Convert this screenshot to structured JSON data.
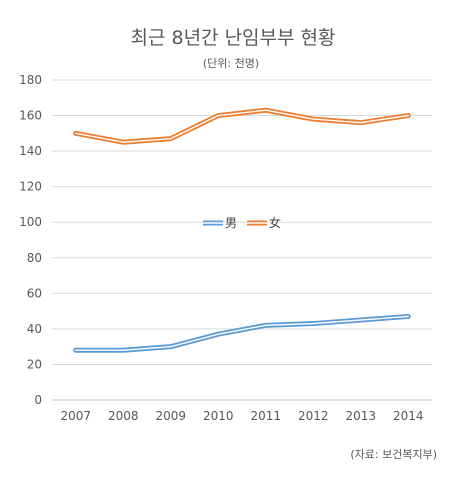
{
  "chart_data": {
    "type": "line",
    "title": "최근 8년간 난임부부 현황",
    "subtitle": "(단위: 천명)",
    "source": "(자료: 보건복지부)",
    "categories": [
      "2007",
      "2008",
      "2009",
      "2010",
      "2011",
      "2012",
      "2013",
      "2014"
    ],
    "series": [
      {
        "name": "男",
        "color": "#5b9bd5",
        "values": [
          28,
          28,
          30,
          37,
          42,
          43,
          45,
          47
        ]
      },
      {
        "name": "女",
        "color": "#ed7d31",
        "values": [
          150,
          145,
          147,
          160,
          163,
          158,
          156,
          160
        ]
      }
    ],
    "ylim": [
      0,
      180
    ],
    "yticks": [
      "0",
      "20",
      "40",
      "60",
      "80",
      "100",
      "120",
      "140",
      "160",
      "180"
    ],
    "grid": true,
    "legend_position": "center",
    "xlabel": "",
    "ylabel": ""
  }
}
